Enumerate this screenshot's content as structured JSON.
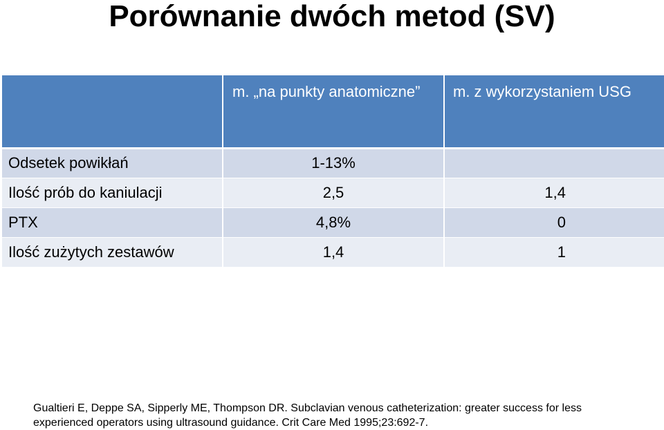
{
  "title": "Porównanie dwóch metod (SV)",
  "table": {
    "header": {
      "col1": "",
      "col2": "m. „na punkty anatomiczne”",
      "col3": "m. z wykorzystaniem USG"
    },
    "rows": [
      {
        "label": "Odsetek powikłań",
        "anatomic": "1-13%",
        "usg": ""
      },
      {
        "label": "Ilość prób do kaniulacji",
        "anatomic": "2,5",
        "usg": "1,4"
      },
      {
        "label": "PTX",
        "anatomic": "4,8%",
        "usg": "0"
      },
      {
        "label": "Ilość zużytych zestawów",
        "anatomic": "1,4",
        "usg": "1"
      }
    ]
  },
  "citation": {
    "line1": "Gualtieri E, Deppe SA, Sipperly ME, Thompson DR. Subclavian venous catheterization: greater success for less",
    "line2": "experienced operators using ultrasound guidance. Crit Care Med 1995;23:692-7."
  },
  "colors": {
    "header_bg": "#4f81bd",
    "row_odd_bg": "#d0d8e8",
    "row_even_bg": "#e9edf4"
  }
}
